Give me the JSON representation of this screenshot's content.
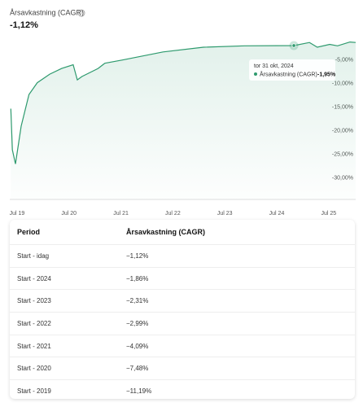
{
  "header": {
    "title": "Årsavkastning (CAGR)",
    "value": "-1,12%"
  },
  "chart_data": {
    "type": "line",
    "series": [
      {
        "name": "Årsavkastning (CAGR)",
        "color": "#2e9a6e",
        "x": [
          2019.38,
          2019.41,
          2019.47,
          2019.58,
          2019.73,
          2019.89,
          2020.13,
          2020.36,
          2020.58,
          2020.66,
          2020.75,
          2021.06,
          2021.19,
          2021.53,
          2022.31,
          2023.09,
          2023.88,
          2024.83,
          2025.13,
          2025.28,
          2025.52,
          2025.67,
          2025.91,
          2026.02
        ],
        "values": [
          -15.3,
          -24.0,
          -27.0,
          -19.0,
          -12.3,
          -9.8,
          -8.0,
          -6.8,
          -6.0,
          -9.2,
          -8.5,
          -6.8,
          -5.7,
          -5.0,
          -3.3,
          -2.3,
          -2.0,
          -1.95,
          -1.3,
          -2.3,
          -1.7,
          -2.0,
          -1.2,
          -1.3
        ]
      }
    ],
    "xlim": [
      2019.36,
      2026.02
    ],
    "xticks": [
      {
        "value": 2019.5,
        "label": "Jul 19"
      },
      {
        "value": 2020.5,
        "label": "Jul 20"
      },
      {
        "value": 2021.5,
        "label": "Jul 21"
      },
      {
        "value": 2022.5,
        "label": "Jul 22"
      },
      {
        "value": 2023.5,
        "label": "Jul 23"
      },
      {
        "value": 2024.5,
        "label": "Jul 24"
      },
      {
        "value": 2025.5,
        "label": "Jul 25"
      }
    ],
    "ylim": [
      -34.5,
      0.8
    ],
    "yticks": [
      {
        "value": -5,
        "label": "-5,00%"
      },
      {
        "value": -10,
        "label": "-10,00%"
      },
      {
        "value": -15,
        "label": "-15,00%"
      },
      {
        "value": -20,
        "label": "-20,00%"
      },
      {
        "value": -25,
        "label": "-25,00%"
      },
      {
        "value": -30,
        "label": "-30,00%"
      }
    ],
    "grid": false,
    "tooltip": {
      "x": 2024.83,
      "value": -1.95,
      "date": "tor 31 okt, 2024",
      "label": "-1,95%"
    }
  },
  "table": {
    "header": [
      "Period",
      "Årsavkastning (CAGR)"
    ],
    "rows": [
      [
        "Start - idag",
        "−1,12%"
      ],
      [
        "Start - 2024",
        "−1,86%"
      ],
      [
        "Start - 2023",
        "−2,31%"
      ],
      [
        "Start - 2022",
        "−2,99%"
      ],
      [
        "Start - 2021",
        "−4,09%"
      ],
      [
        "Start - 2020",
        "−7,48%"
      ],
      [
        "Start - 2019",
        "−11,19%"
      ]
    ]
  }
}
